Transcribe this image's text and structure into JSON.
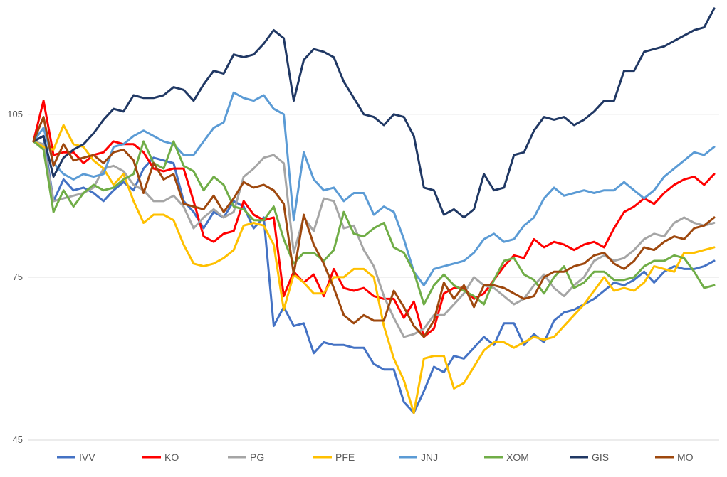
{
  "chart_data": {
    "type": "line",
    "title": "",
    "xlabel": "",
    "ylabel": "",
    "ylim": [
      45,
      125
    ],
    "yticks": [
      45,
      75,
      105
    ],
    "ytick_labels": [
      "45",
      "75",
      "105"
    ],
    "grid": true,
    "legend_position": "bottom",
    "series": [
      {
        "name": "IVV",
        "color": "#4472C4",
        "values": [
          100,
          101,
          89,
          93,
          91,
          91.5,
          90.5,
          89,
          91,
          92.5,
          91,
          95,
          97,
          96.5,
          96,
          89,
          87,
          84,
          87,
          86,
          89,
          88,
          84,
          86,
          66,
          69.5,
          66,
          66.5,
          61,
          63,
          62.5,
          62.5,
          62,
          62,
          59,
          58,
          58,
          52,
          50,
          54,
          58.5,
          57.5,
          60.5,
          60,
          62,
          64,
          62.5,
          66.5,
          66.5,
          62.5,
          64.5,
          63,
          67,
          68.5,
          69,
          70,
          71,
          72.5,
          74,
          73.5,
          74.5,
          76,
          74,
          76,
          77,
          76.5,
          76.5,
          77,
          78
        ]
      },
      {
        "name": "KO",
        "color": "#FF0000",
        "values": [
          100,
          107.5,
          97.5,
          98,
          98,
          96,
          97.5,
          98,
          100,
          99.5,
          99.5,
          98,
          95,
          94.5,
          95,
          95,
          89,
          82.5,
          81.5,
          83,
          83.5,
          89,
          86.5,
          85.5,
          86,
          71.5,
          76,
          74,
          75.5,
          71.5,
          76.5,
          73,
          72.5,
          73,
          71.5,
          71,
          71,
          67.5,
          70.5,
          64,
          65.5,
          72,
          73,
          73,
          71,
          72,
          74.5,
          77,
          79,
          78.5,
          82,
          80.5,
          81.5,
          81,
          80,
          81,
          81.5,
          80.5,
          84,
          87,
          88,
          89.5,
          88.5,
          90.5,
          92,
          93,
          93.5,
          92,
          94
        ]
      },
      {
        "name": "PG",
        "color": "#A5A5A5",
        "values": [
          100,
          99.5,
          89,
          89.5,
          90,
          90.5,
          91.5,
          95,
          95.5,
          94.5,
          92,
          91,
          89,
          89,
          90,
          88,
          84,
          86,
          87.5,
          86,
          87,
          93.5,
          95,
          97,
          97.5,
          96,
          79.5,
          86,
          83.5,
          89.5,
          89,
          84,
          84.5,
          80,
          77,
          71.5,
          67.5,
          64,
          64.5,
          65.5,
          68,
          68,
          70,
          72,
          75,
          73.5,
          73,
          71.5,
          70,
          71,
          73.5,
          75.5,
          73,
          71.5,
          73.5,
          75,
          78,
          79,
          78,
          78.5,
          80,
          82,
          83,
          82.5,
          85,
          86,
          85,
          84.5,
          85
        ]
      },
      {
        "name": "PFE",
        "color": "#FFC000",
        "values": [
          100,
          99,
          98.5,
          103,
          99.5,
          99,
          96.5,
          95,
          92,
          94,
          89,
          85,
          86.5,
          86.5,
          85.5,
          81,
          77.5,
          77,
          77.5,
          78.5,
          80,
          84.5,
          85,
          84.5,
          81,
          69,
          75.5,
          74,
          72,
          72,
          75,
          75,
          76.5,
          76.5,
          75,
          66,
          60,
          56,
          50,
          60,
          60.5,
          60.5,
          54.5,
          55.5,
          58.5,
          61.5,
          63,
          63,
          62,
          63,
          64,
          63.5,
          64,
          66,
          68,
          70,
          72.5,
          75,
          72.5,
          73,
          72.5,
          74,
          77,
          76.5,
          76,
          79.5,
          79.5,
          80,
          80.5
        ]
      },
      {
        "name": "JNJ",
        "color": "#5B9BD5",
        "values": [
          100,
          102.5,
          96,
          94,
          93,
          94,
          93.5,
          94,
          99,
          99.5,
          101,
          102,
          101,
          100,
          99.5,
          97.5,
          97.5,
          100,
          102.5,
          103.5,
          109,
          108,
          107.5,
          108.5,
          106,
          105,
          85.5,
          98,
          93,
          91,
          91.5,
          89,
          90.5,
          90.5,
          86.5,
          88,
          87,
          82,
          76,
          73.5,
          76.5,
          77,
          77.5,
          78,
          79.5,
          82,
          83,
          81.5,
          82,
          84.5,
          86,
          89.5,
          91.5,
          90,
          90.5,
          91,
          90.5,
          91,
          91,
          92.5,
          91,
          89.5,
          91,
          93.5,
          95,
          96.5,
          98,
          97.5,
          99
        ]
      },
      {
        "name": "XOM",
        "color": "#70AD47",
        "values": [
          100,
          98.5,
          87,
          91,
          88,
          90.5,
          92,
          91,
          91.5,
          93,
          94,
          100,
          96,
          95,
          100,
          95.5,
          94.5,
          91,
          93.5,
          92,
          88,
          87.5,
          85.5,
          85.5,
          88,
          82,
          77.5,
          79.5,
          79.5,
          78,
          80,
          87,
          83,
          82.5,
          84,
          85,
          80.5,
          79.5,
          76,
          70,
          73.5,
          75.5,
          73.5,
          72.5,
          71.5,
          70,
          74.5,
          78,
          78.5,
          75.5,
          74.5,
          72,
          75,
          77,
          73,
          74,
          76,
          76,
          74.5,
          74.5,
          75,
          77,
          78,
          78,
          79,
          78.5,
          76,
          73,
          73.5
        ]
      },
      {
        "name": "GIS",
        "color": "#203864",
        "values": [
          100,
          101,
          93.5,
          97,
          98.5,
          99.5,
          101.5,
          104,
          106,
          105.5,
          108.5,
          108,
          108,
          108.5,
          110,
          109.5,
          107.5,
          110.5,
          113,
          112.5,
          116,
          115.5,
          116,
          118,
          120.5,
          119,
          107.5,
          115,
          117,
          116.5,
          115.5,
          111,
          108,
          105,
          104.5,
          103,
          105,
          104.5,
          101,
          91.5,
          91,
          86.5,
          87.5,
          86,
          87.5,
          94,
          91,
          91.5,
          97.5,
          98,
          102,
          104.5,
          104,
          104.5,
          103,
          104,
          105.5,
          107.5,
          107.5,
          113,
          113,
          116.5,
          117,
          117.5,
          118.5,
          119.5,
          120.5,
          121,
          124.5
        ]
      },
      {
        "name": "MO",
        "color": "#9E480E",
        "values": [
          100,
          104.5,
          95.5,
          99.5,
          96.5,
          97,
          97.5,
          96,
          98,
          98.5,
          96.5,
          90.5,
          96,
          93,
          94,
          88.5,
          88,
          87.5,
          90,
          87,
          89.5,
          92.5,
          91.5,
          92,
          91,
          88.5,
          75.5,
          86.5,
          81,
          77.5,
          73,
          68,
          66.5,
          68,
          67,
          67,
          72.5,
          69.5,
          66,
          64,
          67,
          74,
          71,
          73.5,
          69.5,
          73.5,
          73.5,
          73,
          72,
          71,
          71.5,
          75,
          76,
          76,
          77,
          77.5,
          79,
          79.5,
          77.5,
          76.5,
          78,
          80.5,
          80,
          81.5,
          82.5,
          82,
          84,
          84.5,
          86
        ]
      }
    ]
  }
}
